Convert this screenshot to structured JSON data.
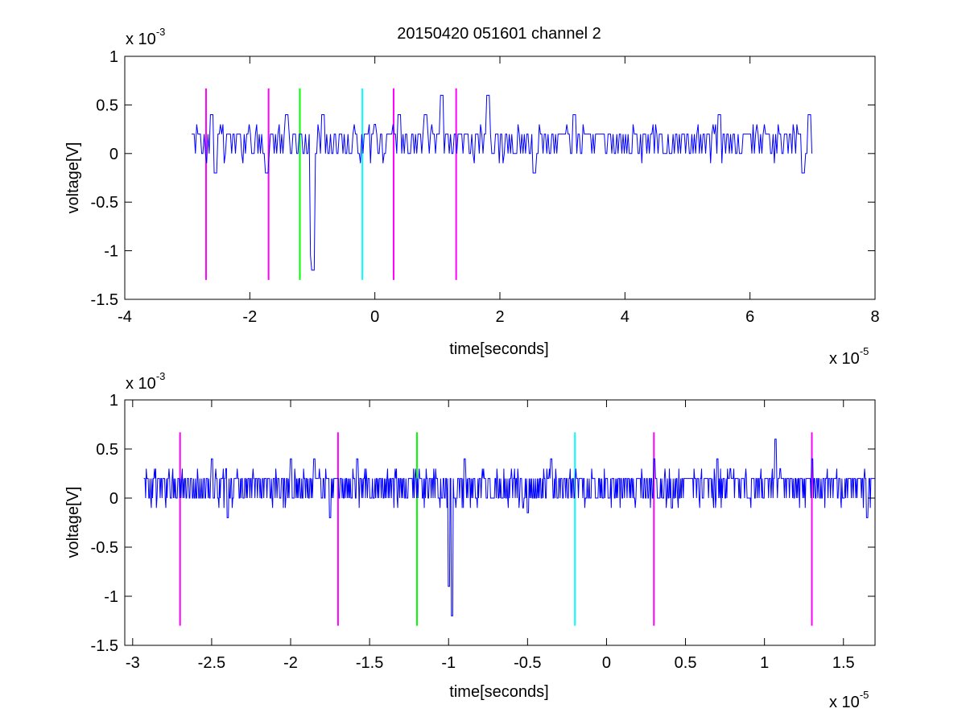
{
  "figure": {
    "title": "20150420 051601 channel 2"
  },
  "chart_data": [
    {
      "type": "line",
      "title": "20150420 051601 channel 2",
      "xlabel": "time[seconds]",
      "ylabel": "voltage[V]",
      "x_multiplier": {
        "base": "x 10",
        "exponent": "-5"
      },
      "y_multiplier": {
        "base": "x 10",
        "exponent": "-3"
      },
      "xlim": [
        -4e-05,
        8e-05
      ],
      "ylim": [
        -0.0015,
        0.001
      ],
      "x_ticks": [
        -4e-05,
        -2e-05,
        0,
        2e-05,
        4e-05,
        6e-05,
        8e-05
      ],
      "x_tick_labels": [
        "-4",
        "-2",
        "0",
        "2",
        "4",
        "6",
        "8"
      ],
      "y_ticks": [
        -0.0015,
        -0.001,
        -0.0005,
        0,
        0.0005,
        0.001
      ],
      "y_tick_labels": [
        "-1.5",
        "-1",
        "-0.5",
        "0",
        "0.5",
        "1"
      ],
      "grid": false,
      "signal": {
        "color": "#0000ff",
        "x_range": [
          -2.93e-05,
          7e-05
        ],
        "sample_step": 2e-07,
        "levels": [
          0,
          0.0002
        ],
        "spikes": [
          {
            "x": -9.8e-06,
            "y": -0.0012
          },
          {
            "x": -1e-05,
            "y": -0.00105
          },
          {
            "x": 4e-06,
            "y": 0.0004
          },
          {
            "x": 1.07e-05,
            "y": 0.0006
          },
          {
            "x": 1.82e-05,
            "y": 0.0006
          },
          {
            "x": -8.3e-06,
            "y": 0.0004
          },
          {
            "x": 8.2e-06,
            "y": 0.0004
          },
          {
            "x": 6.95e-05,
            "y": 0.0004
          },
          {
            "x": -2.6e-05,
            "y": 0.0004
          },
          {
            "x": -1.4e-05,
            "y": 0.0004
          },
          {
            "x": 3.2e-05,
            "y": 0.0004
          },
          {
            "x": 5.5e-05,
            "y": 0.0004
          },
          {
            "x": -2.55e-05,
            "y": -0.0002
          },
          {
            "x": -1.72e-05,
            "y": -0.0002
          },
          {
            "x": 2.55e-05,
            "y": -0.0002
          },
          {
            "x": 6.85e-05,
            "y": -0.0002
          }
        ]
      },
      "markers": [
        {
          "x": -2.7e-05,
          "y_from": -0.0013,
          "y_to": 0.00067,
          "color": "#ff00ff"
        },
        {
          "x": -1.7e-05,
          "y_from": -0.0013,
          "y_to": 0.00067,
          "color": "#ff00ff"
        },
        {
          "x": -1.2e-05,
          "y_from": -0.0013,
          "y_to": 0.00067,
          "color": "#00ff00"
        },
        {
          "x": -2e-06,
          "y_from": -0.0013,
          "y_to": 0.00067,
          "color": "#00ffff"
        },
        {
          "x": 3e-06,
          "y_from": -0.0013,
          "y_to": 0.00067,
          "color": "#ff00ff"
        },
        {
          "x": 1.3e-05,
          "y_from": -0.0013,
          "y_to": 0.00067,
          "color": "#ff00ff"
        }
      ]
    },
    {
      "type": "line",
      "title": "",
      "xlabel": "time[seconds]",
      "ylabel": "voltage[V]",
      "x_multiplier": {
        "base": "x 10",
        "exponent": "-5"
      },
      "y_multiplier": {
        "base": "x 10",
        "exponent": "-3"
      },
      "xlim": [
        -3.05e-05,
        1.7e-05
      ],
      "ylim": [
        -0.0015,
        0.001
      ],
      "x_ticks": [
        -3e-05,
        -2.5e-05,
        -2e-05,
        -1.5e-05,
        -1e-05,
        -5e-06,
        0,
        5e-06,
        1e-05,
        1.5e-05
      ],
      "x_tick_labels": [
        "-3",
        "-2.5",
        "-2",
        "-1.5",
        "-1",
        "-0.5",
        "0",
        "0.5",
        "1",
        "1.5"
      ],
      "y_ticks": [
        -0.0015,
        -0.001,
        -0.0005,
        0,
        0.0005,
        0.001
      ],
      "y_tick_labels": [
        "-1.5",
        "-1",
        "-0.5",
        "0",
        "0.5",
        "1"
      ],
      "grid": false,
      "signal": {
        "color": "#0000ff",
        "x_range": [
          -2.93e-05,
          1.7e-05
        ],
        "sample_step": 4e-08,
        "levels": [
          0,
          0.0002
        ],
        "spikes": [
          {
            "x": -9.8e-06,
            "y": -0.0012
          },
          {
            "x": -1e-05,
            "y": -0.0009
          },
          {
            "x": 1.07e-05,
            "y": 0.0006
          },
          {
            "x": -2.5e-05,
            "y": 0.0004
          },
          {
            "x": -2e-05,
            "y": 0.0004
          },
          {
            "x": -1.85e-05,
            "y": 0.0004
          },
          {
            "x": -1.58e-05,
            "y": 0.0004
          },
          {
            "x": -1e-05,
            "y": 0.0004
          },
          {
            "x": -9e-06,
            "y": 0.0004
          },
          {
            "x": -3.5e-06,
            "y": 0.0004
          },
          {
            "x": 3e-06,
            "y": 0.0004
          },
          {
            "x": 7e-06,
            "y": 0.0004
          },
          {
            "x": 1.3e-05,
            "y": 0.0004
          },
          {
            "x": -2.4e-05,
            "y": -0.0002
          },
          {
            "x": -1.75e-05,
            "y": -0.0002
          },
          {
            "x": -5e-06,
            "y": -0.00015
          },
          {
            "x": 1.65e-05,
            "y": -0.0002
          }
        ]
      },
      "markers": [
        {
          "x": -2.7e-05,
          "y_from": -0.0013,
          "y_to": 0.00067,
          "color": "#ff00ff"
        },
        {
          "x": -1.7e-05,
          "y_from": -0.0013,
          "y_to": 0.00067,
          "color": "#ff00ff"
        },
        {
          "x": -1.2e-05,
          "y_from": -0.0013,
          "y_to": 0.00067,
          "color": "#00ff00"
        },
        {
          "x": -2e-06,
          "y_from": -0.0013,
          "y_to": 0.00067,
          "color": "#00ffff"
        },
        {
          "x": 3e-06,
          "y_from": -0.0013,
          "y_to": 0.00067,
          "color": "#ff00ff"
        },
        {
          "x": 1.3e-05,
          "y_from": -0.0013,
          "y_to": 0.00067,
          "color": "#ff00ff"
        }
      ]
    }
  ]
}
